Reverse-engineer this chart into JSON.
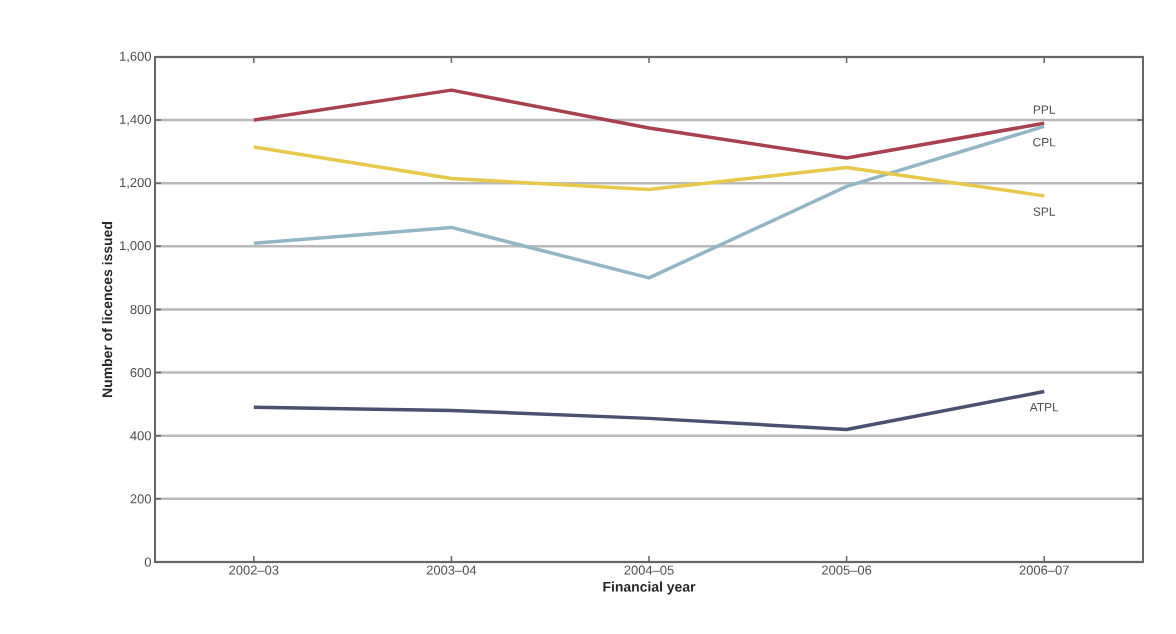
{
  "chart_data": {
    "type": "line",
    "xlabel": "Financial year",
    "ylabel": "Number of licences issued",
    "categories": [
      "2002–03",
      "2003–04",
      "2004–05",
      "2005–06",
      "2006–07"
    ],
    "series": [
      {
        "name": "PPL",
        "color": "#a8404f",
        "values": [
          1400,
          1495,
          1375,
          1280,
          1390
        ]
      },
      {
        "name": "CPL",
        "color": "#92b6c6",
        "values": [
          1010,
          1060,
          900,
          1190,
          1380
        ]
      },
      {
        "name": "SPL",
        "color": "#e8c84a",
        "values": [
          1315,
          1215,
          1180,
          1250,
          1160
        ]
      },
      {
        "name": "ATPL",
        "color": "#4a5070",
        "values": [
          490,
          480,
          455,
          420,
          540
        ]
      }
    ],
    "ylim": [
      0,
      1600
    ],
    "yticks": [
      0,
      200,
      400,
      600,
      800,
      {
        "value": 1000,
        "label": "1,000"
      },
      {
        "value": 1200,
        "label": "1,200"
      },
      {
        "value": 1400,
        "label": "1,400"
      },
      {
        "value": 1600,
        "label": "1,600"
      }
    ],
    "grid": "y",
    "marker": "none",
    "line_style": "solid"
  }
}
